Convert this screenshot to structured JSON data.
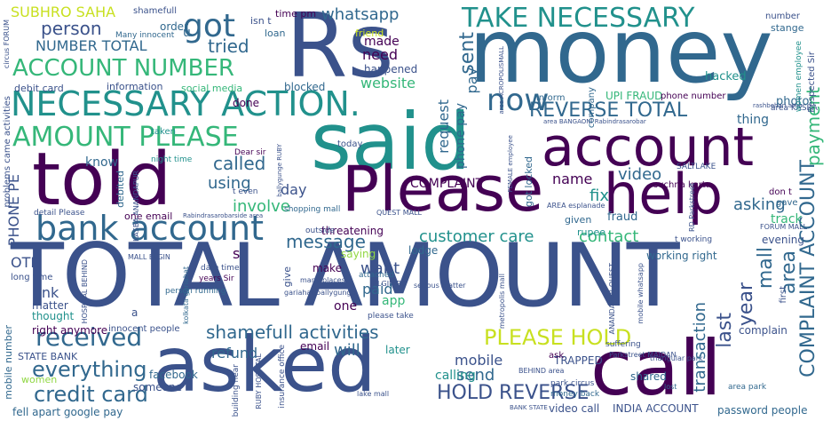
{
  "palette": {
    "dark_purple": "#440154",
    "indigo": "#3b528b",
    "blue": "#31688e",
    "teal": "#21918c",
    "green": "#35b779",
    "lime": "#90d743",
    "yellow": "#c8e020"
  },
  "words": {
    "total_amount": "TOTAL AMOUNT",
    "asked": "asked",
    "call": "call",
    "money": "money",
    "rs": "Rs",
    "said": "said",
    "told": "told",
    "please": "Please",
    "account": "account",
    "help": "help",
    "necessary_action": "NECESSARY ACTION.",
    "take_necessary": "TAKE NECESSARY",
    "bank_account": "bank account",
    "amount_please": "AMOUNT PLEASE",
    "account_number": "ACCOUNT NUMBER",
    "received": "received",
    "please_hold": "PLEASE HOLD",
    "got": "got",
    "now": "now",
    "reverse_total": "REVERSE TOTAL",
    "shamefull_activities": "shamefull activities",
    "credit_card": "credit card",
    "everything": "everything",
    "hold_reverse": "HOLD REVERSE",
    "message": "message",
    "customer_care": "customer care",
    "contact": "contact",
    "called": "called",
    "person": "person",
    "whatsapp": "whatsapp",
    "number_total": "NUMBER TOTAL",
    "tried": "tried",
    "made": "made",
    "need": "need",
    "website": "website",
    "sent": "sent",
    "pay": "pay",
    "request": "request",
    "phone_pay": "phone pay",
    "payment": "payment",
    "complaint_account": "COMPLAINT ACCOUNT",
    "mall": "mall",
    "area": "area",
    "last": "last",
    "year": "year",
    "transaction": "transaction",
    "video": "video",
    "asking": "asking",
    "fix": "fix",
    "name": "name",
    "complaint": "COMPLAINT",
    "involve": "involve",
    "using": "using",
    "day": "day",
    "want": "want",
    "paid": "paid",
    "app": "app",
    "one": "one",
    "will": "will",
    "send": "send",
    "calling": "calling",
    "mobile": "mobile",
    "refund": "refund",
    "link": "link",
    "otp": "OTP",
    "know": "know",
    "phone_pe": "PHONE PE",
    "subhro_saha": "SUBHRO SAHA",
    "thing": "thing",
    "fraud": "fraud",
    "photo": "photo",
    "hacked": "hacked",
    "track": "track",
    "evening": "evening",
    "working_right": "working right",
    "complain": "complain",
    "shared": "shared",
    "trapped": "TRAPPED",
    "video_call": "video call",
    "india_account": "INDIA ACCOUNT",
    "password_people": "password people",
    "facebook": "facebook",
    "someone": "someone",
    "fell_apart": "fell apart google pay",
    "women": "women",
    "state_bank": "STATE BANK",
    "right_anymore": "right anymore",
    "innocent_people": "innocent people",
    "thought": "thought",
    "matter": "matter",
    "long_time": "long time",
    "problems_came": "problems came activities",
    "threatening": "threatening",
    "saying": "saying",
    "lodge": "lodge",
    "make": "make",
    "give": "give",
    "email": "email",
    "later": "later",
    "done": "done",
    "blocked": "blocked",
    "happened": "happened",
    "order": "order",
    "friend": "friend",
    "loan": "loan",
    "isnt": "isn t",
    "time_pm": "time pm",
    "shamefull": "shamefull",
    "debit_card": "debit card",
    "information": "information",
    "social_media": "social media",
    "upi_fraud": "UPI FRAUD",
    "phone_number": "phone number",
    "inform": "inform",
    "company": "company",
    "number": "number",
    "stange": "stange",
    "respected_sir": "Respected Sir",
    "women_employee": "women employee",
    "dont": "don t",
    "gave": "gave",
    "saltlake": "SALTLAKE",
    "given": "given",
    "rupee": "rupee",
    "suchna_karta": "suchna karta",
    "got_locked": "got locked",
    "today": "today",
    "taken": "taken",
    "information_sm": "information",
    "one_email": "one email",
    "debited": "debited",
    "detail_please": "detail Please",
    "quest_mall": "QUEST MALL",
    "shopping_mall": "shopping mall",
    "outside": "outside",
    "dear_sir": "Dear sir",
    "night_time": "night time",
    "many_innocent": "Many innocent",
    "circus_forum": "circus FORUM",
    "date_time": "date time",
    "years_sir": "years Sir",
    "person_running": "person running",
    "kolkata_gariahat": "kolkata gariahat",
    "many_places": "many places",
    "gariahat_ballygunge": "gariahat ballygunge",
    "elgin_rd": "ELGIN RD",
    "attached": "attached",
    "please_take": "please take",
    "serious_matter": "serious matter",
    "park_circus": "park circus",
    "money_back": "money back",
    "lake_mall": "lake mall",
    "area_park": "area park",
    "parkstreet_maidan": "Parkstreet MAIDAN",
    "lost": "lost",
    "ask": "ask",
    "suffering": "suffering",
    "insurance_office": "insurance office",
    "building_near": "building near",
    "ruby_hospital": "RUBY HOSPITAL",
    "mall_elgin": "MALL ELGIN",
    "first": "first",
    "forum_mall": "FORUM MALL",
    "area_kasba": "area KASBA",
    "t_even": "t even",
    "t_working": "t working",
    "area_esplanade": "AREA esplanade",
    "behind_area": "BEHIND area",
    "hospital_behind": "HOSPITAL BEHIND",
    "mobile_number": "mobile number",
    "kasba_anandapur": "KASBA ANANDAPUR",
    "rd_parkstreet": "RD Parkstreet",
    "ballygunge_ruby": "ballygunge RUBY",
    "rabindrasarobar": "Rabindrasarobarside area",
    "acropolis_mall": "area ACROPOLISMALL",
    "metropolis_mall": "metropolis mall",
    "female_employee": "FEMALE employee",
    "bank_state": "BANK STATE",
    "anandapur_quest": "ANANDAPUR QUEST",
    "rashbehari_area": "rashbehari area",
    "bangaon": "area BANGAONI Rabindrasarobar",
    "mobile_whatsapp": "mobile whatsapp",
    "triangular_park": "triangular park",
    "s": "s",
    "u": "u",
    "a": "a"
  }
}
